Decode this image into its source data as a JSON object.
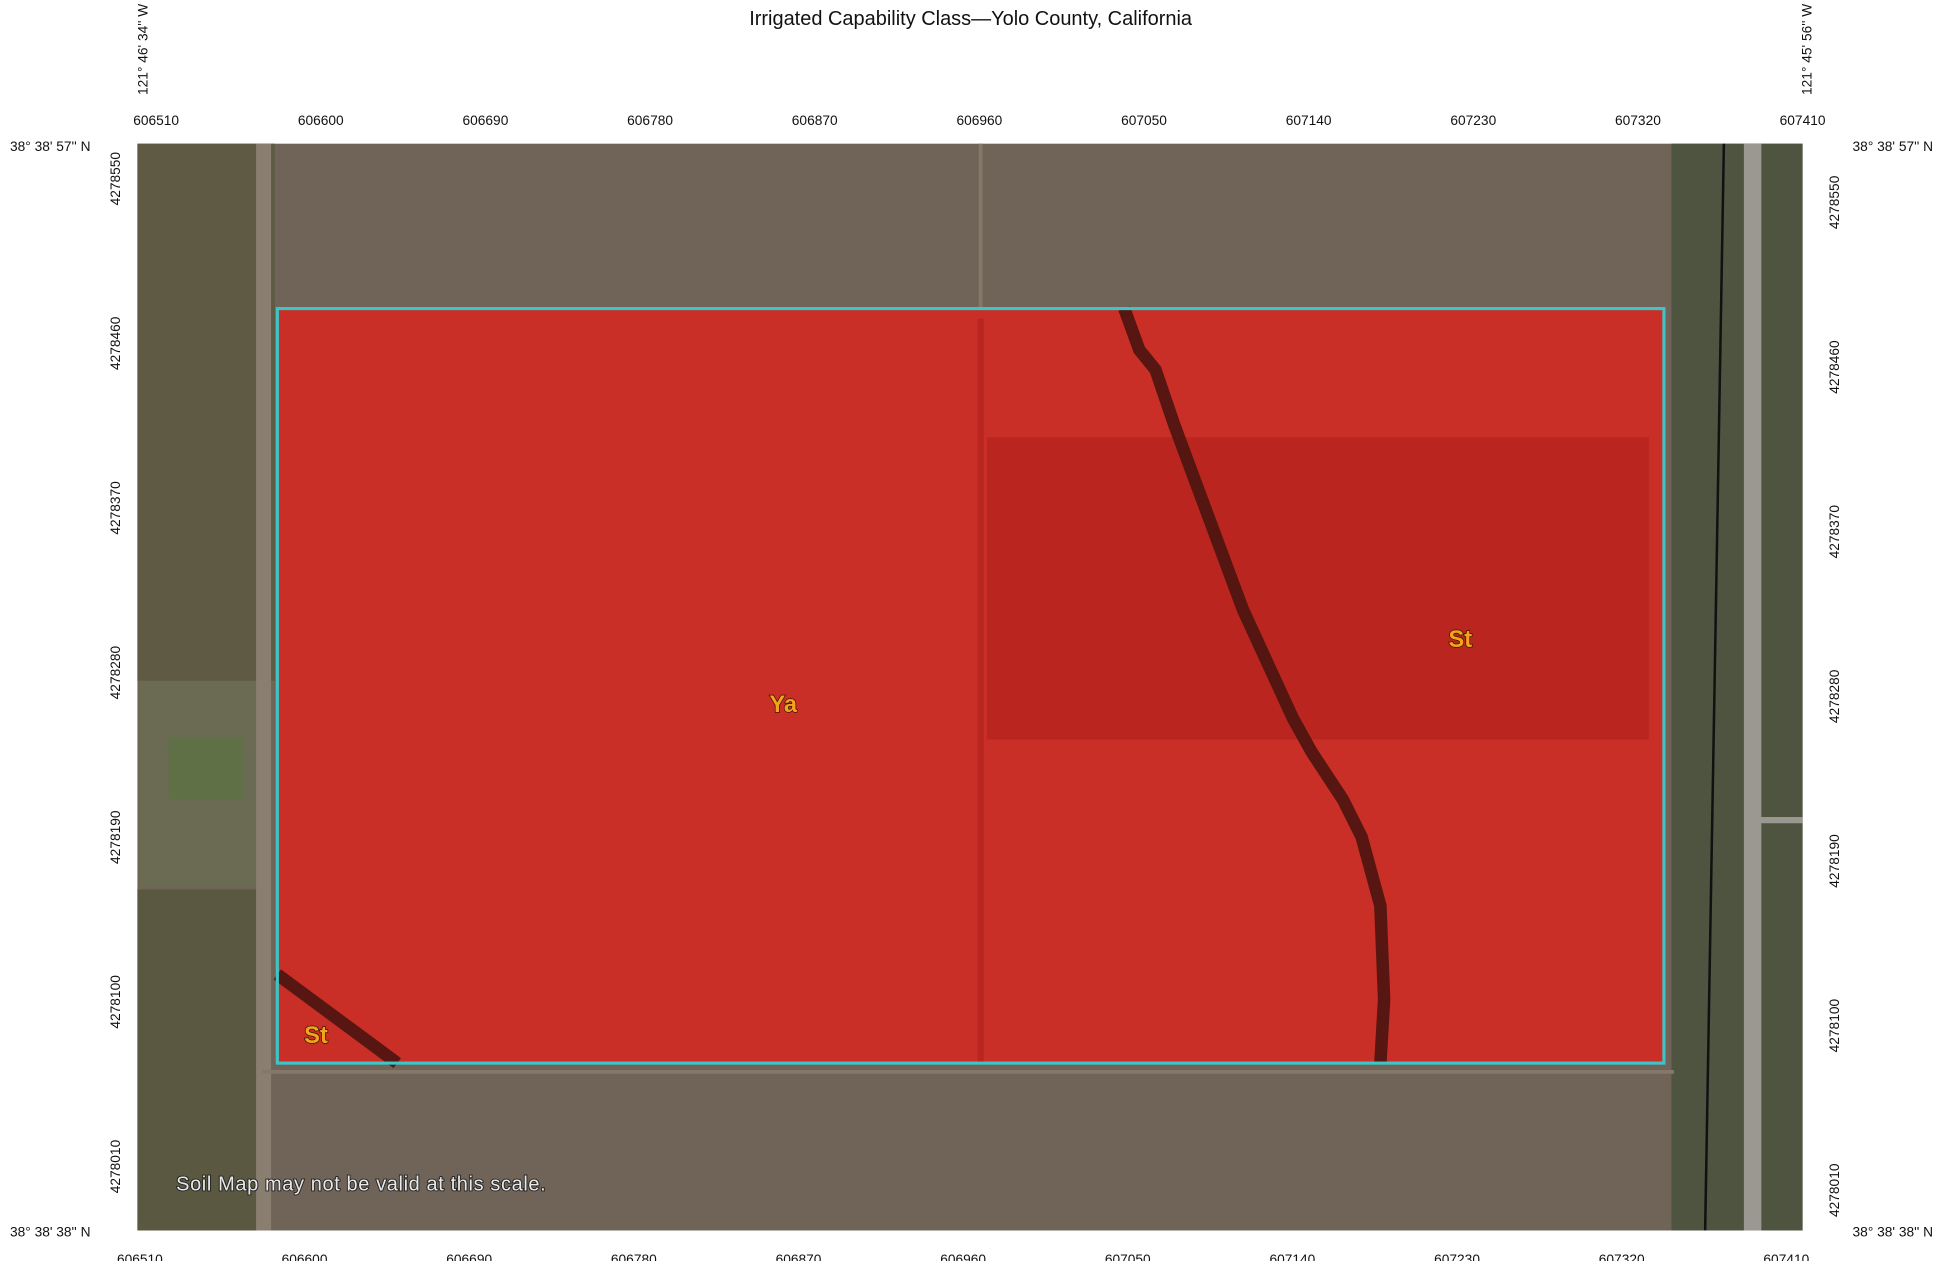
{
  "title": "Irrigated Capability Class—Yolo County, California",
  "top_ticks": [
    "606510",
    "606600",
    "606690",
    "606780",
    "606870",
    "606960",
    "607050",
    "607140",
    "607230",
    "607320",
    "607410"
  ],
  "bottom_ticks": [
    "606510",
    "606600",
    "606690",
    "606780",
    "606870",
    "606960",
    "607050",
    "607140",
    "607230",
    "607320",
    "607410"
  ],
  "left_ticks": [
    "4278550",
    "4278460",
    "4278370",
    "4278280",
    "4278190",
    "4278100",
    "4278010"
  ],
  "right_ticks": [
    "4278550",
    "4278460",
    "4278370",
    "4278280",
    "4278190",
    "4278100",
    "4278010"
  ],
  "corners": {
    "top_left_lon": "121° 46' 34'' W",
    "top_right_lon": "121° 45' 56'' W",
    "top_left_lat": "38° 38' 57'' N",
    "top_right_lat": "38° 38' 57'' N",
    "bottom_left_lat": "38° 38' 38'' N",
    "bottom_right_lat": "38° 38' 38'' N"
  },
  "map_units": [
    "Ya",
    "St",
    "St"
  ],
  "note": "Soil Map may not be valid at this scale."
}
